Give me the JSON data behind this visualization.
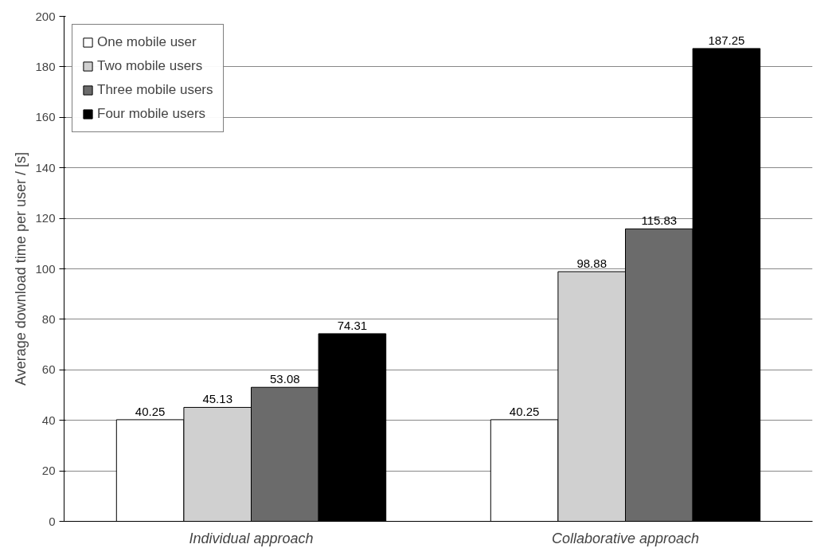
{
  "chart_data": {
    "type": "bar",
    "ylabel": "Average download time per user / [s]",
    "categories": [
      "Individual approach",
      "Collaborative approach"
    ],
    "series": [
      {
        "name": "One mobile user",
        "color": "#ffffff",
        "values": [
          40.25,
          40.25
        ]
      },
      {
        "name": "Two mobile users",
        "color": "#d0d0d0",
        "values": [
          45.13,
          98.88
        ]
      },
      {
        "name": "Three mobile users",
        "color": "#6b6b6b",
        "values": [
          53.08,
          115.83
        ]
      },
      {
        "name": "Four mobile users",
        "color": "#000000",
        "values": [
          74.31,
          187.25
        ]
      }
    ],
    "ylim": [
      0,
      200
    ],
    "yticks": [
      0,
      20,
      40,
      60,
      80,
      100,
      120,
      140,
      160,
      180,
      200
    ],
    "grid": "y",
    "legend": "top left",
    "data_labels": true
  }
}
